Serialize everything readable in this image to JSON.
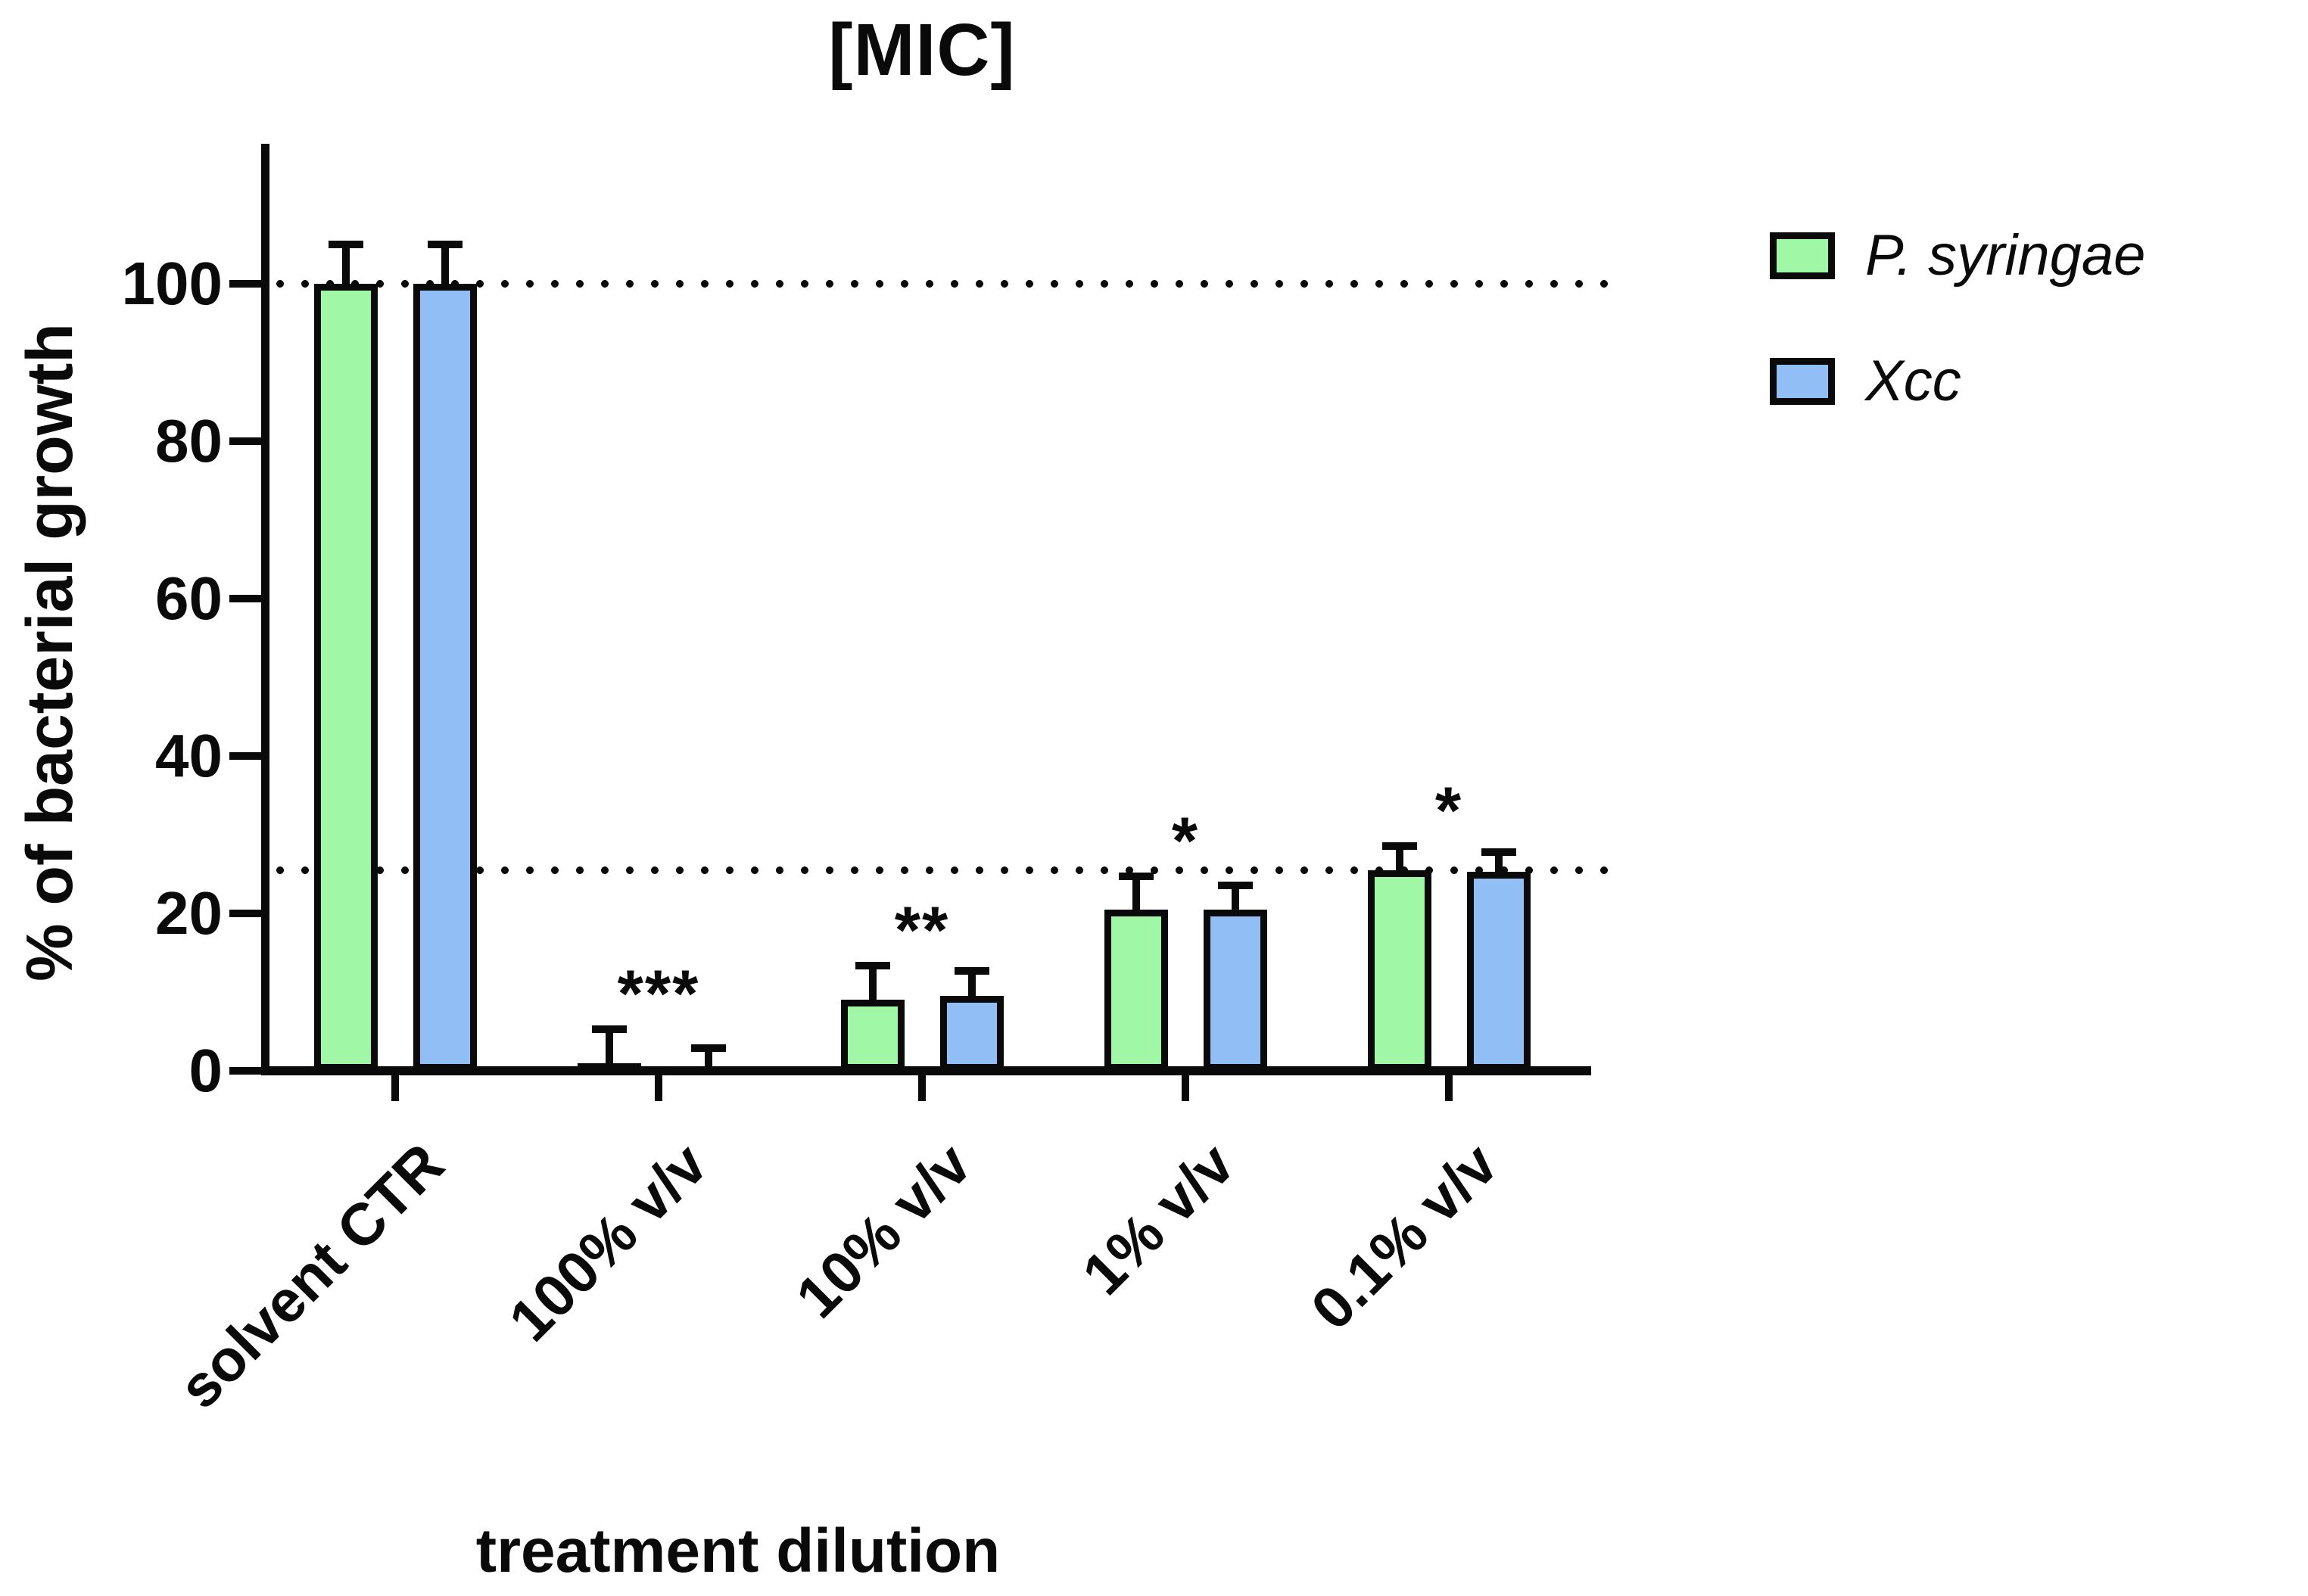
{
  "chart_data": {
    "type": "bar",
    "title": "[MIC]",
    "xlabel": "treatment dilution",
    "ylabel": "% of bacterial growth",
    "ylim": [
      0,
      118
    ],
    "yticks": [
      0,
      20,
      40,
      60,
      80,
      100
    ],
    "grid": false,
    "legend_position": "top-right",
    "categories": [
      "solvent CTR",
      "100% v/v",
      "10% v/v",
      "1% v/v",
      "0.1% v/v"
    ],
    "series": [
      {
        "name": "P. syringae",
        "color": "#A0F7A5",
        "values": [
          100,
          1,
          9,
          20.5,
          25.5
        ],
        "error_up": [
          5.5,
          4.8,
          4.8,
          4.7,
          3.5
        ]
      },
      {
        "name": "Xcc",
        "color": "#91BEF5",
        "values": [
          100,
          0.3,
          9.5,
          20.5,
          25.3
        ],
        "error_up": [
          5.5,
          3.1,
          3.7,
          3.5,
          3.0
        ]
      }
    ],
    "significance_markers": [
      {
        "category": "100% v/v",
        "text": "***"
      },
      {
        "category": "10% v/v",
        "text": "**"
      },
      {
        "category": "1% v/v",
        "text": "*"
      },
      {
        "category": "0.1% v/v",
        "text": "*"
      }
    ],
    "reference_lines": [
      {
        "y": 100,
        "style": "dotted"
      },
      {
        "y": 25.5,
        "style": "dotted"
      }
    ]
  }
}
